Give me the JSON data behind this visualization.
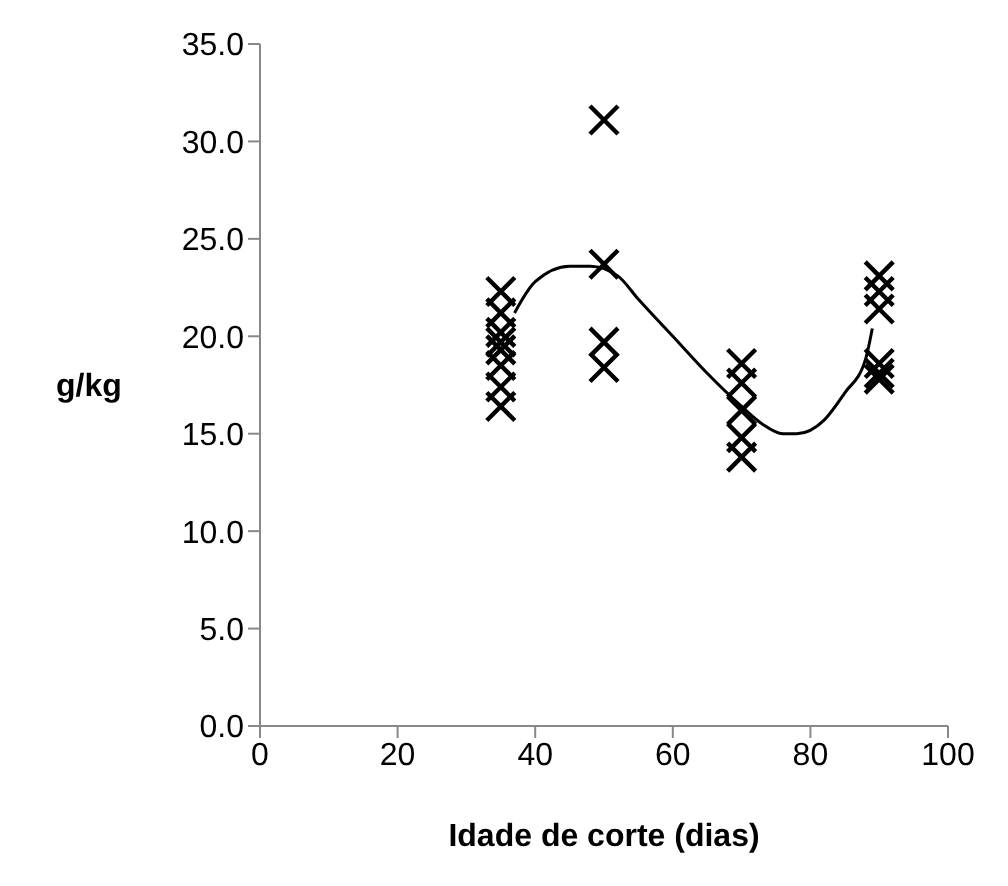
{
  "chart_data": {
    "type": "scatter",
    "xlabel": "Idade de corte (dias)",
    "ylabel": "g/kg",
    "marker": "cross",
    "grid": false,
    "legend": false,
    "xlim": [
      0,
      100
    ],
    "xticks": [
      0,
      20,
      40,
      60,
      80,
      100
    ],
    "ylim": [
      0,
      35
    ],
    "yticks": [
      {
        "value": 0,
        "label": "0.0"
      },
      {
        "value": 5,
        "label": "5.0"
      },
      {
        "value": 10,
        "label": "10.0"
      },
      {
        "value": 15,
        "label": "15.0"
      },
      {
        "value": 20,
        "label": "20.0"
      },
      {
        "value": 25,
        "label": "25.0"
      },
      {
        "value": 30,
        "label": "30.0"
      },
      {
        "value": 35,
        "label": "35.0"
      }
    ],
    "series": [
      {
        "color": "#000000",
        "x": [
          35,
          35,
          35,
          35,
          35,
          35,
          35,
          35,
          50,
          50,
          50,
          50,
          70,
          70,
          70,
          70,
          70,
          90,
          90,
          90,
          90,
          90,
          90
        ],
        "values": [
          22.3,
          21.2,
          20.2,
          19.7,
          19.3,
          18.5,
          17.4,
          16.4,
          31.1,
          23.7,
          19.7,
          18.4,
          18.6,
          17.6,
          16.2,
          14.8,
          13.8,
          23.1,
          22.3,
          21.4,
          18.6,
          18.1,
          17.8
        ]
      },
      {
        "type": "line",
        "marker": "none",
        "color": "#000000",
        "x": [
          37,
          40,
          45,
          48,
          52,
          55,
          60,
          65,
          70,
          73,
          76,
          78,
          82,
          85,
          88,
          89
        ],
        "values": [
          21.2,
          22.8,
          23.6,
          23.6,
          23.1,
          21.9,
          20.0,
          18.1,
          16.4,
          15.5,
          15.0,
          15.0,
          15.7,
          17.1,
          18.8,
          20.4
        ]
      }
    ]
  }
}
